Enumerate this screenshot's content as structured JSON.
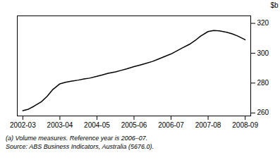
{
  "chart_data": {
    "type": "line",
    "x": [
      0.0,
      0.15,
      0.3,
      0.5,
      0.65,
      0.8,
      1.0,
      1.15,
      1.3,
      1.5,
      1.65,
      1.8,
      2.0,
      2.15,
      2.3,
      2.5,
      2.65,
      2.8,
      3.0,
      3.15,
      3.3,
      3.5,
      3.65,
      3.8,
      4.0,
      4.15,
      4.3,
      4.5,
      4.65,
      4.8,
      5.0,
      5.15,
      5.3,
      5.5,
      5.65,
      5.8,
      6.0
    ],
    "values": [
      261.5,
      262.5,
      264.5,
      267.5,
      271.0,
      275.5,
      279.5,
      280.5,
      281.2,
      282.0,
      282.8,
      283.3,
      284.5,
      285.5,
      286.5,
      287.5,
      288.5,
      289.5,
      291.0,
      292.0,
      293.0,
      294.5,
      296.0,
      297.5,
      299.5,
      301.5,
      303.5,
      306.0,
      308.5,
      311.5,
      314.5,
      315.2,
      315.0,
      314.0,
      313.0,
      311.5,
      309.0
    ],
    "xlim": [
      -0.15,
      6.15
    ],
    "xticks": [
      {
        "value": 0,
        "label": "2002-03"
      },
      {
        "value": 1,
        "label": "2003-04"
      },
      {
        "value": 2,
        "label": "2004-05"
      },
      {
        "value": 3,
        "label": "2005-06"
      },
      {
        "value": 4,
        "label": "2006-07"
      },
      {
        "value": 5,
        "label": "2007-08"
      },
      {
        "value": 6,
        "label": "2008-09"
      }
    ],
    "ylim": [
      258,
      325
    ],
    "yticks": [
      260,
      280,
      300,
      320
    ],
    "ylabel": "$b",
    "annotations": [
      "(a) Volume measures. Reference year is 2006–07.",
      "Source: ABS Business Indicators, Australia (5676.0)."
    ],
    "grid": false
  }
}
